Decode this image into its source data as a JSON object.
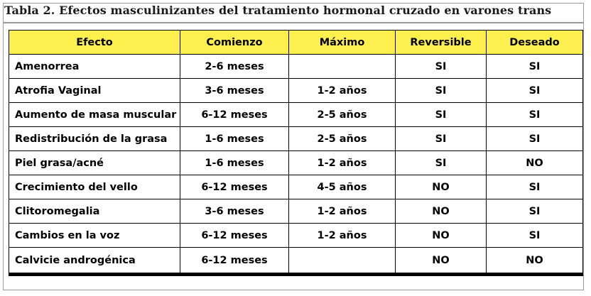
{
  "caption": "Tabla 2. Efectos masculinizantes del tratamiento hormonal cruzado en varones trans",
  "columns": [
    "Efecto",
    "Comienzo",
    "Máximo",
    "Reversible",
    "Deseado"
  ],
  "rows": [
    {
      "efecto": "Amenorrea",
      "comienzo": "2-6 meses",
      "maximo": "",
      "reversible": "SI",
      "deseado": "SI"
    },
    {
      "efecto": "Atrofia Vaginal",
      "comienzo": "3-6 meses",
      "maximo": "1-2 años",
      "reversible": "SI",
      "deseado": "SI"
    },
    {
      "efecto": "Aumento de masa muscular",
      "comienzo": "6-12 meses",
      "maximo": "2-5 años",
      "reversible": "SI",
      "deseado": "SI"
    },
    {
      "efecto": "Redistribución de la grasa",
      "comienzo": "1-6 meses",
      "maximo": "2-5 años",
      "reversible": "SI",
      "deseado": "SI"
    },
    {
      "efecto": "Piel grasa/acné",
      "comienzo": "1-6 meses",
      "maximo": "1-2 años",
      "reversible": "SI",
      "deseado": "NO"
    },
    {
      "efecto": "Crecimiento del vello",
      "comienzo": "6-12 meses",
      "maximo": "4-5 años",
      "reversible": "NO",
      "deseado": "SI"
    },
    {
      "efecto": "Clitoromegalia",
      "comienzo": "3-6 meses",
      "maximo": "1-2 años",
      "reversible": "NO",
      "deseado": "SI"
    },
    {
      "efecto": "Cambios en la voz",
      "comienzo": "6-12 meses",
      "maximo": "1-2 años",
      "reversible": "NO",
      "deseado": "SI"
    },
    {
      "efecto": "Calvicie androgénica",
      "comienzo": "6-12 meses",
      "maximo": "",
      "reversible": "NO",
      "deseado": "NO"
    }
  ],
  "colors": {
    "header_background": "#fdf04e",
    "frame_border": "#9a9a9a"
  }
}
